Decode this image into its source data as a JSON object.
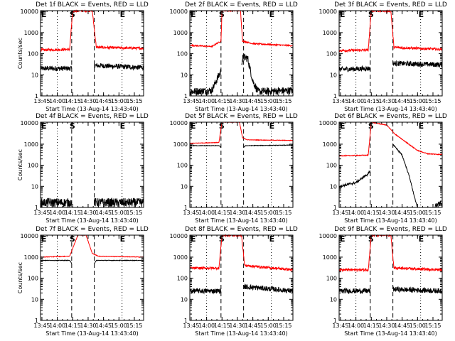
{
  "figure": {
    "type": "line",
    "colors": {
      "events": "#000000",
      "lld": "#ff0000",
      "axes": "#000000"
    },
    "x_ticks": [
      "13:45",
      "14:00",
      "14:15",
      "14:30",
      "14:45",
      "15:00",
      "15:15"
    ],
    "xlim": [
      "13:43:40",
      "15:24:00"
    ],
    "y_scale": "log",
    "ylim": [
      1,
      11000
    ],
    "y_ticks": [
      "1",
      "10",
      "100",
      "1000",
      "10000"
    ],
    "marker_lines": [
      {
        "time": "14:14:00",
        "style": "dashed",
        "label": "S"
      },
      {
        "time": "14:36:00",
        "style": "dashed",
        "label": ""
      },
      {
        "time": "14:00:00",
        "style": "dotted",
        "label": ""
      },
      {
        "time": "15:03:00",
        "style": "dotted",
        "label": "E"
      }
    ],
    "start_marker_label": "E"
  },
  "chart_data": [
    {
      "title": "Det 1f BLACK = Events, RED = LLD",
      "ylabel": "Counts/sec",
      "xlabel": "Start Time (13-Aug-14 13:43:40)",
      "series": [
        {
          "name": "Events",
          "color": "#000000",
          "segments": [
            {
              "t": [
                "13:43:40",
                "14:14:00"
              ],
              "values": [
                20,
                20
              ],
              "noise": 0.2
            },
            {
              "t": [
                "14:36:00",
                "15:24:00"
              ],
              "values": [
                28,
                22
              ],
              "noise": 0.2
            }
          ]
        },
        {
          "name": "LLD",
          "color": "#ff0000",
          "segments": [
            {
              "t": [
                "13:43:40",
                "14:12:00",
                "14:15:00",
                "14:34:00",
                "14:38:00",
                "15:24:00"
              ],
              "values": [
                150,
                160,
                11000,
                11000,
                200,
                180
              ],
              "noise": 0.1
            }
          ]
        }
      ]
    },
    {
      "title": "Det 2f BLACK = Events, RED = LLD",
      "ylabel": "",
      "xlabel": "Start Time (13-Aug-14 13:43:40)",
      "series": [
        {
          "name": "Events",
          "color": "#000000",
          "segments": [
            {
              "t": [
                "13:43:40",
                "14:05:00",
                "14:10:00",
                "14:14:00"
              ],
              "values": [
                1.6,
                1.8,
                6,
                15
              ],
              "noise": 0.3
            },
            {
              "t": [
                "14:34:00",
                "14:36:00",
                "14:40:00",
                "14:45:00",
                "14:50:00",
                "15:24:00"
              ],
              "values": [
                40,
                70,
                60,
                5,
                1.6,
                1.8
              ],
              "noise": 0.3
            }
          ]
        },
        {
          "name": "LLD",
          "color": "#ff0000",
          "segments": [
            {
              "t": [
                "13:43:40",
                "14:05:00",
                "14:14:00",
                "14:15:00",
                "14:33:00",
                "14:35:00",
                "14:45:00",
                "15:24:00"
              ],
              "values": [
                250,
                220,
                400,
                11000,
                11000,
                400,
                300,
                240
              ],
              "noise": 0.05
            }
          ]
        }
      ]
    },
    {
      "title": "Det 3f BLACK = Events, RED = LLD",
      "ylabel": "",
      "xlabel": "Start Time (13-Aug-14 13:43:40)",
      "series": [
        {
          "name": "Events",
          "color": "#000000",
          "segments": [
            {
              "t": [
                "13:43:40",
                "14:14:00"
              ],
              "values": [
                18,
                20
              ],
              "noise": 0.2
            },
            {
              "t": [
                "14:36:00",
                "15:24:00"
              ],
              "values": [
                35,
                30
              ],
              "noise": 0.2
            }
          ]
        },
        {
          "name": "LLD",
          "color": "#ff0000",
          "segments": [
            {
              "t": [
                "13:43:40",
                "14:12:00",
                "14:15:00",
                "14:34:00",
                "14:37:00",
                "15:24:00"
              ],
              "values": [
                140,
                150,
                11000,
                11000,
                200,
                160
              ],
              "noise": 0.1
            }
          ]
        }
      ]
    },
    {
      "title": "Det 4f BLACK = Events, RED = LLD",
      "ylabel": "Counts/sec",
      "xlabel": "Start Time (13-Aug-14 13:43:40)",
      "series": [
        {
          "name": "Events",
          "color": "#000000",
          "segments": [
            {
              "t": [
                "13:43:40",
                "14:14:00"
              ],
              "values": [
                1.7,
                1.7
              ],
              "noise": 0.35
            },
            {
              "t": [
                "14:36:00",
                "15:24:00"
              ],
              "values": [
                1.7,
                1.7
              ],
              "noise": 0.35
            }
          ]
        }
      ]
    },
    {
      "title": "Det 5f BLACK = Events, RED = LLD",
      "ylabel": "",
      "xlabel": "Start Time (13-Aug-14 13:43:40)",
      "series": [
        {
          "name": "Events",
          "color": "#000000",
          "segments": [
            {
              "t": [
                "13:43:40",
                "14:12:00",
                "14:14:00"
              ],
              "values": [
                850,
                850,
                700
              ],
              "noise": 0.02
            },
            {
              "t": [
                "14:36:00",
                "14:38:00",
                "15:24:00"
              ],
              "values": [
                700,
                850,
                900
              ],
              "noise": 0.02
            }
          ]
        },
        {
          "name": "LLD",
          "color": "#ff0000",
          "segments": [
            {
              "t": [
                "13:43:40",
                "14:12:00",
                "14:15:00",
                "14:32:00",
                "14:35:00",
                "14:40:00",
                "15:24:00"
              ],
              "values": [
                1100,
                1200,
                11000,
                11000,
                2000,
                1600,
                1500
              ],
              "noise": 0.02
            }
          ]
        }
      ]
    },
    {
      "title": "Det 6f BLACK = Events, RED = LLD",
      "ylabel": "",
      "xlabel": "Start Time (13-Aug-14 13:43:40)",
      "series": [
        {
          "name": "Events",
          "color": "#000000",
          "segments": [
            {
              "t": [
                "13:43:40",
                "14:00:00",
                "14:12:00",
                "14:14:00"
              ],
              "values": [
                10,
                15,
                40,
                50
              ],
              "noise": 0.1
            },
            {
              "t": [
                "14:36:00",
                "14:45:00",
                "14:52:00",
                "14:58:00",
                "15:00:00"
              ],
              "values": [
                1000,
                300,
                30,
                2,
                1
              ],
              "noise": 0.05
            },
            {
              "t": [
                "15:17:00",
                "15:24:00"
              ],
              "values": [
                1.2,
                1.6
              ],
              "noise": 0.2
            }
          ]
        },
        {
          "name": "LLD",
          "color": "#ff0000",
          "segments": [
            {
              "t": [
                "13:43:40",
                "14:12:00",
                "14:15:00",
                "14:30:00",
                "14:38:00",
                "15:00:00",
                "15:10:00",
                "15:24:00"
              ],
              "values": [
                280,
                300,
                11000,
                8000,
                3000,
                500,
                350,
                320
              ],
              "noise": 0.03
            }
          ]
        }
      ]
    },
    {
      "title": "Det 7f BLACK = Events, RED = LLD",
      "ylabel": "Counts/sec",
      "xlabel": "Start Time (13-Aug-14 13:43:40)",
      "series": [
        {
          "name": "Events",
          "color": "#000000",
          "segments": [
            {
              "t": [
                "13:43:40",
                "14:12:00",
                "14:14:00"
              ],
              "values": [
                700,
                700,
                500
              ],
              "noise": 0.02
            },
            {
              "t": [
                "14:36:00",
                "14:38:00",
                "15:24:00"
              ],
              "values": [
                500,
                700,
                700
              ],
              "noise": 0.02
            }
          ]
        },
        {
          "name": "LLD",
          "color": "#ff0000",
          "segments": [
            {
              "t": [
                "13:43:40",
                "14:12:00",
                "14:20:00",
                "14:28:00",
                "14:34:00",
                "14:40:00",
                "15:24:00"
              ],
              "values": [
                1000,
                1100,
                11000,
                11000,
                1500,
                1100,
                1000
              ],
              "noise": 0.02
            }
          ]
        }
      ]
    },
    {
      "title": "Det 8f BLACK = Events, RED = LLD",
      "ylabel": "",
      "xlabel": "Start Time (13-Aug-14 13:43:40)",
      "series": [
        {
          "name": "Events",
          "color": "#000000",
          "segments": [
            {
              "t": [
                "13:43:40",
                "14:14:00"
              ],
              "values": [
                25,
                25
              ],
              "noise": 0.2
            },
            {
              "t": [
                "14:36:00",
                "15:24:00"
              ],
              "values": [
                40,
                25
              ],
              "noise": 0.2
            }
          ]
        },
        {
          "name": "LLD",
          "color": "#ff0000",
          "segments": [
            {
              "t": [
                "13:43:40",
                "14:12:00",
                "14:15:00",
                "14:34:00",
                "14:37:00",
                "15:24:00"
              ],
              "values": [
                300,
                300,
                11000,
                11000,
                400,
                250
              ],
              "noise": 0.1
            }
          ]
        }
      ]
    },
    {
      "title": "Det 9f BLACK = Events, RED = LLD",
      "ylabel": "",
      "xlabel": "Start Time (13-Aug-14 13:43:40)",
      "series": [
        {
          "name": "Events",
          "color": "#000000",
          "segments": [
            {
              "t": [
                "13:43:40",
                "14:14:00"
              ],
              "values": [
                25,
                25
              ],
              "noise": 0.2
            },
            {
              "t": [
                "14:36:00",
                "15:24:00"
              ],
              "values": [
                30,
                25
              ],
              "noise": 0.2
            }
          ]
        },
        {
          "name": "LLD",
          "color": "#ff0000",
          "segments": [
            {
              "t": [
                "13:43:40",
                "14:12:00",
                "14:15:00",
                "14:34:00",
                "14:37:00",
                "15:24:00"
              ],
              "values": [
                250,
                250,
                11000,
                11000,
                300,
                250
              ],
              "noise": 0.1
            }
          ]
        }
      ]
    }
  ]
}
